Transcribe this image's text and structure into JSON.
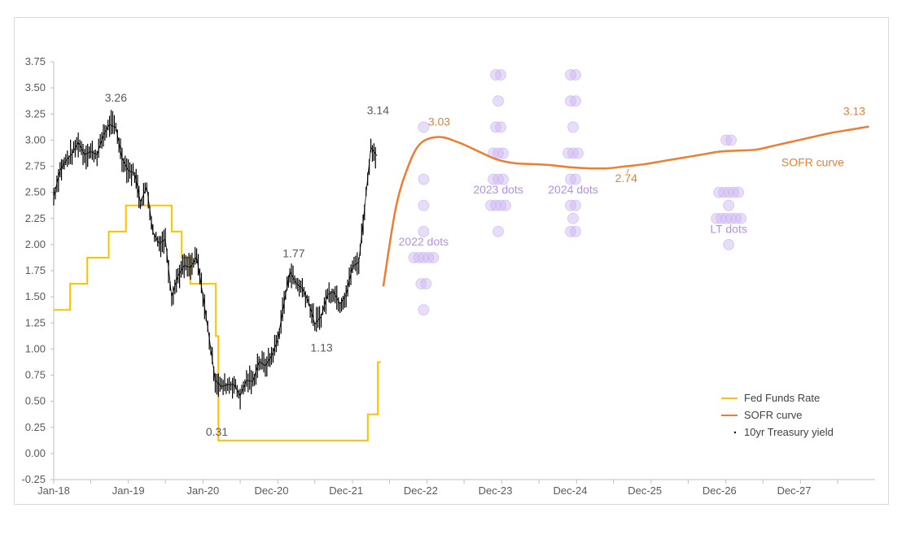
{
  "chart_data": {
    "type": "line",
    "title": "",
    "xlabel": "",
    "ylabel": "",
    "ylim": [
      -0.25,
      3.75
    ],
    "y_ticks": [
      "3.75",
      "3.50",
      "3.25",
      "3.00",
      "2.75",
      "2.50",
      "2.25",
      "2.00",
      "1.75",
      "1.50",
      "1.25",
      "1.00",
      "0.75",
      "0.50",
      "0.25",
      "0.00",
      "-0.25"
    ],
    "x_ticks": [
      "Jan-18",
      "Jan-19",
      "Jan-20",
      "Dec-20",
      "Dec-21",
      "Dec-22",
      "Dec-23",
      "Dec-24",
      "Dec-25",
      "Dec-26",
      "Dec-27"
    ],
    "x_range": [
      "2018-01-01",
      "2028-12-31"
    ],
    "grid": false,
    "legend_position": "bottom-right",
    "legend": [
      {
        "name": "Fed Funds Rate",
        "color": "#ffc000",
        "marker": "line"
      },
      {
        "name": "SOFR curve",
        "color": "#ed7d31",
        "marker": "line"
      },
      {
        "name": "10yr Treasury yield",
        "color": "#000000",
        "marker": "dot"
      }
    ],
    "series": [
      {
        "name": "Fed Funds Rate",
        "color": "#ffc000",
        "step": true,
        "x": [
          "2018-01-01",
          "2018-03-22",
          "2018-06-14",
          "2018-09-27",
          "2018-12-20",
          "2019-08-01",
          "2019-09-19",
          "2019-10-31",
          "2020-03-04",
          "2020-03-16",
          "2022-03-17",
          "2022-05-05",
          "2022-05-20"
        ],
        "values": [
          1.375,
          1.625,
          1.875,
          2.125,
          2.375,
          2.125,
          1.875,
          1.625,
          1.125,
          0.125,
          0.375,
          0.875,
          0.875
        ]
      },
      {
        "name": "SOFR curve",
        "color": "#ed7d31",
        "x": [
          "2022-06-01",
          "2022-08-01",
          "2022-10-01",
          "2022-12-01",
          "2023-03-01",
          "2023-06-01",
          "2023-09-01",
          "2023-12-01",
          "2024-03-01",
          "2024-06-01",
          "2024-09-01",
          "2024-12-01",
          "2025-03-01",
          "2025-06-01",
          "2025-09-01",
          "2025-12-01",
          "2026-03-01",
          "2026-06-01",
          "2026-09-01",
          "2026-12-01",
          "2027-03-01",
          "2027-06-01",
          "2027-09-01",
          "2027-12-01",
          "2028-03-01",
          "2028-06-01",
          "2028-09-01",
          "2028-12-01"
        ],
        "values": [
          1.6,
          2.35,
          2.75,
          2.97,
          3.03,
          2.98,
          2.9,
          2.82,
          2.78,
          2.77,
          2.76,
          2.74,
          2.73,
          2.73,
          2.75,
          2.77,
          2.8,
          2.83,
          2.86,
          2.89,
          2.9,
          2.91,
          2.95,
          2.99,
          3.03,
          3.07,
          3.1,
          3.13
        ]
      },
      {
        "name": "10yr Treasury yield",
        "color": "#000000",
        "x": [
          "2018-01-01",
          "2018-02-01",
          "2018-03-01",
          "2018-04-01",
          "2018-05-01",
          "2018-06-01",
          "2018-07-01",
          "2018-08-01",
          "2018-09-01",
          "2018-10-01",
          "2018-11-01",
          "2018-12-01",
          "2019-01-01",
          "2019-02-01",
          "2019-03-01",
          "2019-04-01",
          "2019-05-01",
          "2019-06-01",
          "2019-07-01",
          "2019-08-01",
          "2019-09-01",
          "2019-10-01",
          "2019-11-01",
          "2019-12-01",
          "2020-01-01",
          "2020-02-01",
          "2020-03-01",
          "2020-04-01",
          "2020-05-01",
          "2020-06-01",
          "2020-07-01",
          "2020-08-01",
          "2020-09-01",
          "2020-10-01",
          "2020-11-01",
          "2020-12-01",
          "2021-01-01",
          "2021-02-01",
          "2021-03-01",
          "2021-04-01",
          "2021-05-01",
          "2021-06-01",
          "2021-07-01",
          "2021-08-01",
          "2021-09-01",
          "2021-10-01",
          "2021-11-01",
          "2021-12-01",
          "2022-01-01",
          "2022-02-01",
          "2022-03-01",
          "2022-04-01",
          "2022-05-01"
        ],
        "values": [
          2.46,
          2.71,
          2.8,
          2.87,
          2.98,
          2.86,
          2.89,
          2.86,
          3.05,
          3.15,
          3.12,
          2.83,
          2.71,
          2.68,
          2.41,
          2.55,
          2.12,
          2.01,
          2.05,
          1.5,
          1.7,
          1.8,
          1.78,
          1.88,
          1.51,
          1.1,
          0.7,
          0.64,
          0.66,
          0.66,
          0.55,
          0.7,
          0.69,
          0.88,
          0.84,
          0.93,
          1.09,
          1.45,
          1.74,
          1.63,
          1.58,
          1.45,
          1.24,
          1.31,
          1.52,
          1.55,
          1.43,
          1.52,
          1.79,
          1.83,
          2.34,
          2.93,
          2.85
        ],
        "style": "black vertical high-low bars"
      }
    ],
    "dots": [
      {
        "group": "2022 dots",
        "x": "2022-12-15",
        "values": [
          3.125,
          2.625,
          2.375,
          2.125,
          1.875,
          1.625,
          1.375
        ],
        "counts": [
          1,
          1,
          1,
          1,
          5,
          2,
          1
        ]
      },
      {
        "group": "2023 dots",
        "x": "2023-12-15",
        "values": [
          3.625,
          3.375,
          3.125,
          2.875,
          2.625,
          2.375,
          2.125
        ],
        "counts": [
          2,
          1,
          2,
          3,
          3,
          4,
          1
        ]
      },
      {
        "group": "2024 dots",
        "x": "2024-12-15",
        "values": [
          3.625,
          3.375,
          3.125,
          2.875,
          2.625,
          2.375,
          2.25,
          2.125
        ],
        "counts": [
          2,
          2,
          1,
          3,
          2,
          2,
          1,
          2
        ]
      },
      {
        "group": "LT dots",
        "x": "2027-01-15",
        "values": [
          3.0,
          2.5,
          2.375,
          2.25,
          2.0
        ],
        "counts": [
          2,
          5,
          1,
          6,
          1
        ]
      }
    ],
    "dot_color": "#c9b3f0",
    "annotations": [
      {
        "text": "3.26",
        "x": "2018-11-01",
        "y": 3.26,
        "color": "#595959"
      },
      {
        "text": "0.31",
        "x": "2020-03-09",
        "y": 0.31,
        "color": "#595959"
      },
      {
        "text": "1.77",
        "x": "2021-03-20",
        "y": 1.77,
        "color": "#595959"
      },
      {
        "text": "1.13",
        "x": "2021-08-03",
        "y": 1.13,
        "color": "#595959"
      },
      {
        "text": "3.14",
        "x": "2022-05-06",
        "y": 3.14,
        "color": "#595959"
      },
      {
        "text": "3.03",
        "x": "2023-03-01",
        "y": 3.03,
        "color": "#ed7d31"
      },
      {
        "text": "2.74",
        "x": "2025-09-01",
        "y": 2.74,
        "color": "#ed7d31"
      },
      {
        "text": "3.13",
        "x": "2028-12-01",
        "y": 3.13,
        "color": "#ed7d31"
      },
      {
        "text": "SOFR curve",
        "x": "2028-03-01",
        "y": 2.79,
        "color": "#ed7d31"
      },
      {
        "text": "2022 dots",
        "x": "2022-12-15",
        "y": 1.99,
        "color": "#b58ee8"
      },
      {
        "text": "2023 dots",
        "x": "2023-12-15",
        "y": 2.49,
        "color": "#b58ee8"
      },
      {
        "text": "2024 dots",
        "x": "2024-12-15",
        "y": 2.49,
        "color": "#b58ee8"
      },
      {
        "text": "LT dots",
        "x": "2027-01-15",
        "y": 2.11,
        "color": "#b58ee8"
      }
    ]
  }
}
